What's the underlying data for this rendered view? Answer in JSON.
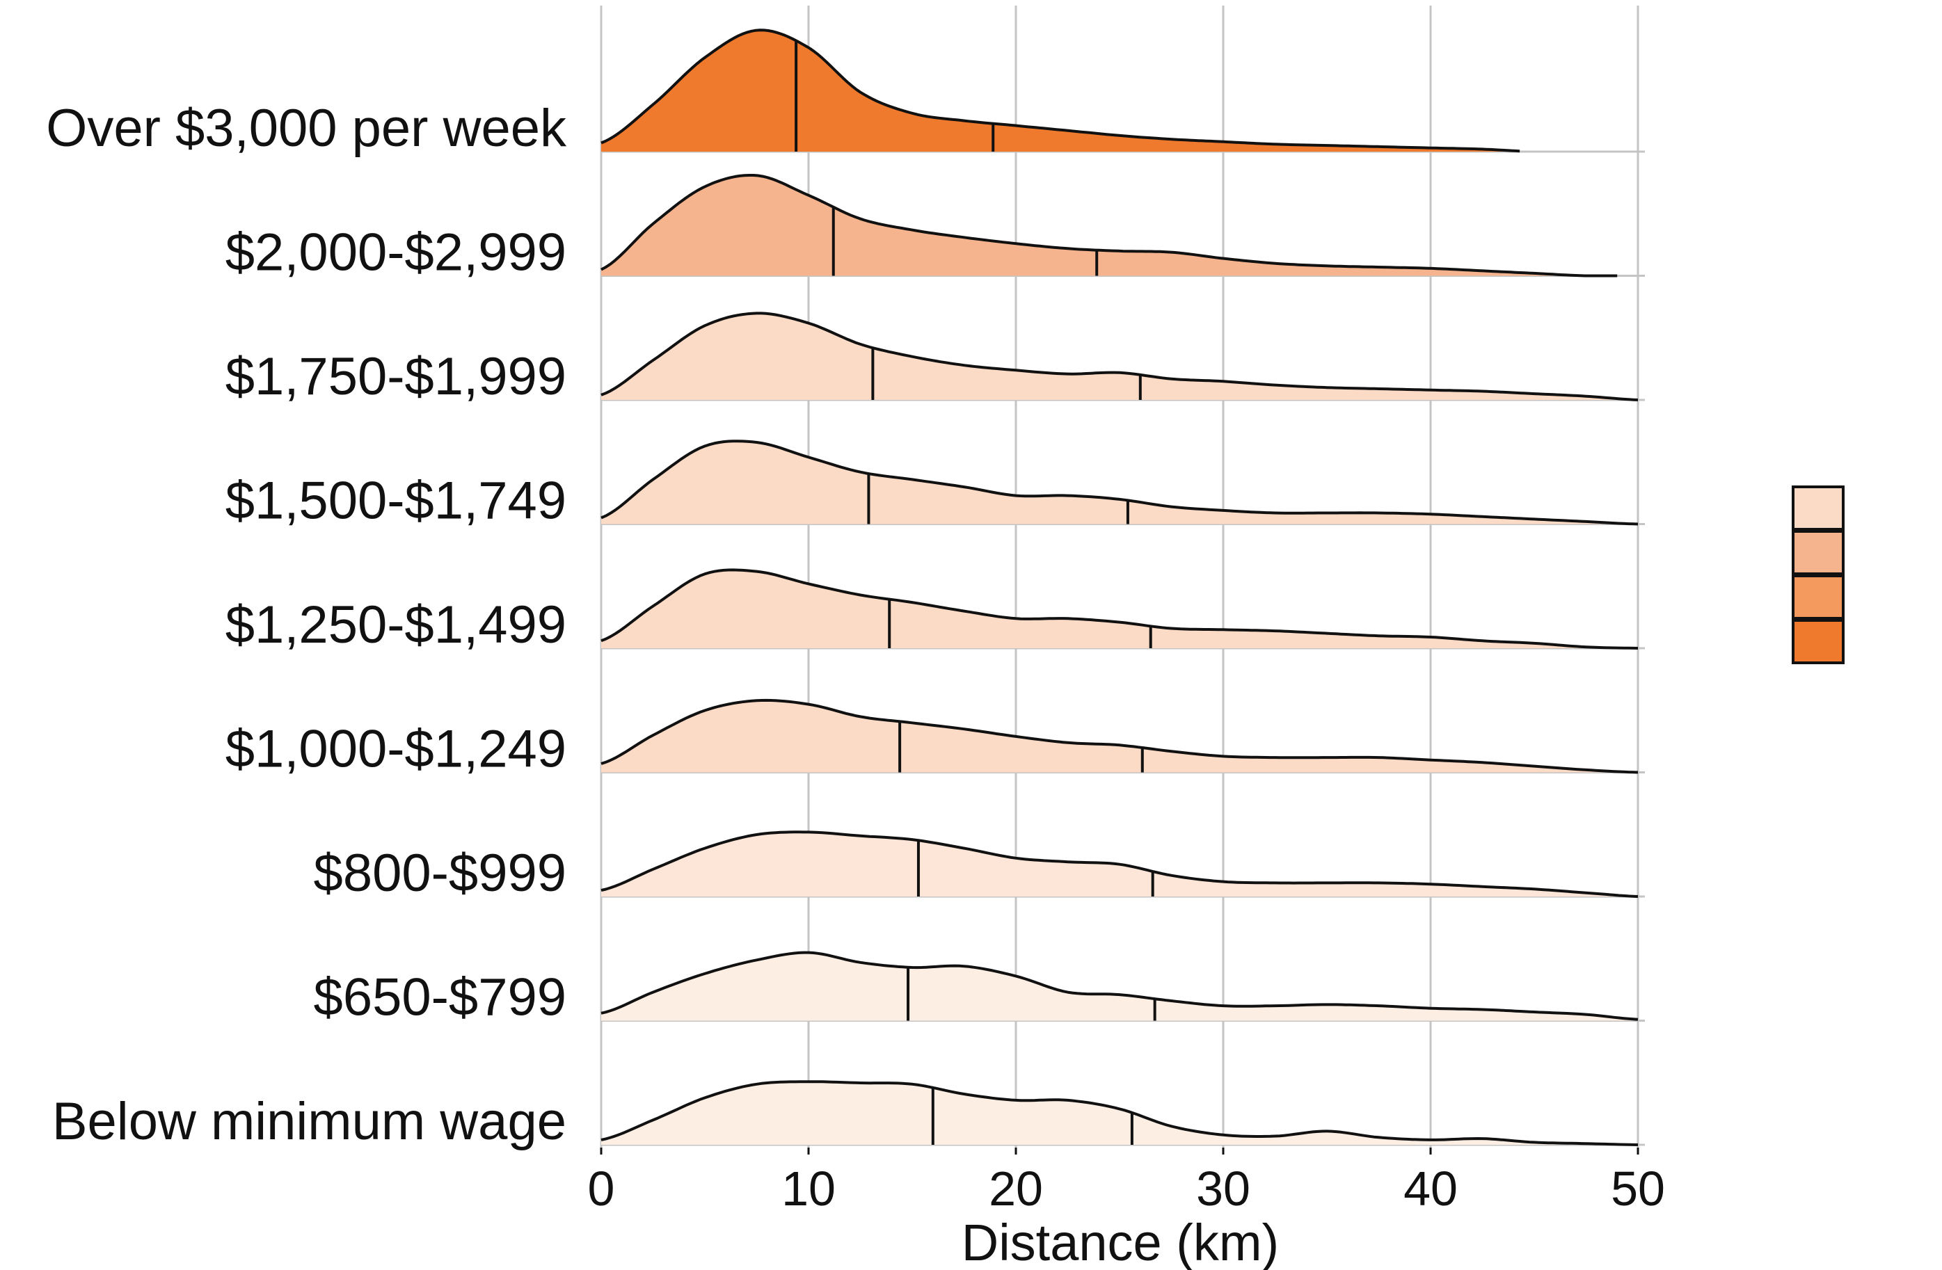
{
  "chart_data": {
    "type": "ridgeline",
    "xlabel": "Distance (km)",
    "xlim": [
      0,
      50
    ],
    "x_ticks": [
      0,
      10,
      20,
      30,
      40,
      50
    ],
    "grid": true,
    "legend_placement": "right",
    "legend_colors": [
      "#fbdac6",
      "#f6b48e",
      "#f49a5f",
      "#ef7a2e"
    ],
    "density_x": [
      0,
      2.5,
      5,
      7.5,
      10,
      12.5,
      15,
      17.5,
      20,
      22.5,
      25,
      27.5,
      30,
      32.5,
      35,
      37.5,
      40,
      42.5,
      45,
      47.5,
      50
    ],
    "series": [
      {
        "name": "Over $3,000 per week",
        "color": "#ef7a2e",
        "quantiles": [
          9.4,
          18.9
        ],
        "x_end": 44.3,
        "density": [
          0.07,
          0.38,
          0.76,
          0.98,
          0.84,
          0.48,
          0.31,
          0.25,
          0.21,
          0.17,
          0.13,
          0.1,
          0.08,
          0.06,
          0.05,
          0.04,
          0.03,
          0.02,
          0.0
        ]
      },
      {
        "name": "$2,000-$2,999",
        "color": "#f6b48e",
        "quantiles": [
          11.2,
          23.9
        ],
        "x_end": 49.0,
        "density": [
          0.05,
          0.42,
          0.72,
          0.81,
          0.65,
          0.46,
          0.37,
          0.31,
          0.26,
          0.22,
          0.2,
          0.19,
          0.14,
          0.1,
          0.08,
          0.07,
          0.06,
          0.04,
          0.02,
          0.0
        ]
      },
      {
        "name": "$1,750-$1,999",
        "color": "#fbdac6",
        "quantiles": [
          13.1,
          26.0
        ],
        "x_end": 50,
        "density": [
          0.04,
          0.32,
          0.6,
          0.7,
          0.62,
          0.45,
          0.35,
          0.28,
          0.24,
          0.21,
          0.22,
          0.17,
          0.15,
          0.12,
          0.1,
          0.09,
          0.08,
          0.07,
          0.05,
          0.03,
          0.0
        ]
      },
      {
        "name": "$1,500-$1,749",
        "color": "#fbdac6",
        "quantiles": [
          12.9,
          25.4
        ],
        "x_end": 50,
        "density": [
          0.05,
          0.36,
          0.63,
          0.66,
          0.54,
          0.42,
          0.36,
          0.3,
          0.23,
          0.23,
          0.2,
          0.14,
          0.11,
          0.09,
          0.09,
          0.09,
          0.08,
          0.06,
          0.04,
          0.02,
          0.0
        ]
      },
      {
        "name": "$1,250-$1,499",
        "color": "#fbdac6",
        "quantiles": [
          13.9,
          26.5
        ],
        "x_end": 50,
        "density": [
          0.06,
          0.34,
          0.6,
          0.62,
          0.52,
          0.43,
          0.37,
          0.3,
          0.24,
          0.24,
          0.21,
          0.16,
          0.15,
          0.14,
          0.12,
          0.1,
          0.09,
          0.06,
          0.04,
          0.01,
          0.0
        ]
      },
      {
        "name": "$1,000-$1,249",
        "color": "#fbdac6",
        "quantiles": [
          14.4,
          26.1
        ],
        "x_end": 50,
        "density": [
          0.07,
          0.3,
          0.5,
          0.58,
          0.55,
          0.45,
          0.4,
          0.35,
          0.29,
          0.24,
          0.22,
          0.17,
          0.13,
          0.12,
          0.12,
          0.12,
          0.1,
          0.08,
          0.05,
          0.02,
          0.0
        ]
      },
      {
        "name": "$800-$999",
        "color": "#fde6d8",
        "quantiles": [
          15.3,
          26.6
        ],
        "x_end": 50,
        "density": [
          0.05,
          0.22,
          0.39,
          0.5,
          0.52,
          0.49,
          0.46,
          0.39,
          0.31,
          0.28,
          0.26,
          0.17,
          0.12,
          0.11,
          0.11,
          0.11,
          0.1,
          0.08,
          0.06,
          0.03,
          0.0
        ]
      },
      {
        "name": "$650-$799",
        "color": "#fdeee4",
        "quantiles": [
          14.8,
          26.7
        ],
        "x_end": 50,
        "density": [
          0.06,
          0.23,
          0.38,
          0.49,
          0.55,
          0.47,
          0.43,
          0.44,
          0.36,
          0.23,
          0.21,
          0.16,
          0.12,
          0.12,
          0.13,
          0.12,
          0.1,
          0.09,
          0.07,
          0.05,
          0.01
        ]
      },
      {
        "name": "Below minimum wage",
        "color": "#fdeee4",
        "quantiles": [
          16.0,
          25.6
        ],
        "x_end": 50,
        "density": [
          0.04,
          0.2,
          0.38,
          0.49,
          0.51,
          0.5,
          0.49,
          0.41,
          0.36,
          0.36,
          0.29,
          0.15,
          0.08,
          0.07,
          0.11,
          0.06,
          0.04,
          0.05,
          0.02,
          0.01,
          0.0
        ]
      }
    ]
  }
}
